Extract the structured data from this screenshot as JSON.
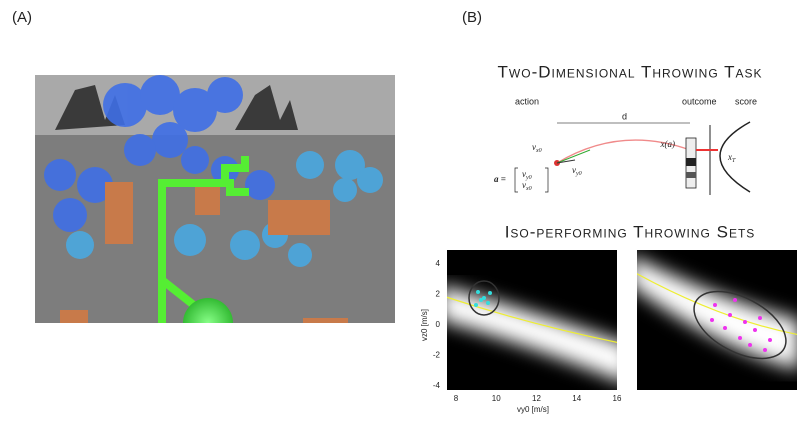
{
  "panel_a": {
    "label": "(A)"
  },
  "panel_b": {
    "label": "(B)",
    "title": "Two-Dimensional Throwing Task",
    "diagram": {
      "action": "action",
      "outcome": "outcome",
      "score": "score",
      "distance": "d",
      "vx": {
        "symbol": "v",
        "sub": "x0"
      },
      "vy": {
        "symbol": "v",
        "sub": "y0"
      },
      "outcome_fn": "x(a)",
      "target": {
        "symbol": "x",
        "sub": "T"
      },
      "vector_lhs": "a =",
      "vector_top": {
        "symbol": "v",
        "sub": "y0"
      },
      "vector_bottom": {
        "symbol": "v",
        "sub": "x0"
      }
    },
    "subtitle": "Iso-performing Throwing Sets",
    "plot": {
      "ylabel": "vz0 [m/s]",
      "xlabel": "vy0 [m/s]",
      "yticks": [
        4,
        2,
        0,
        -2,
        -4
      ],
      "xticks": [
        8,
        10,
        12,
        14,
        16
      ]
    }
  }
}
